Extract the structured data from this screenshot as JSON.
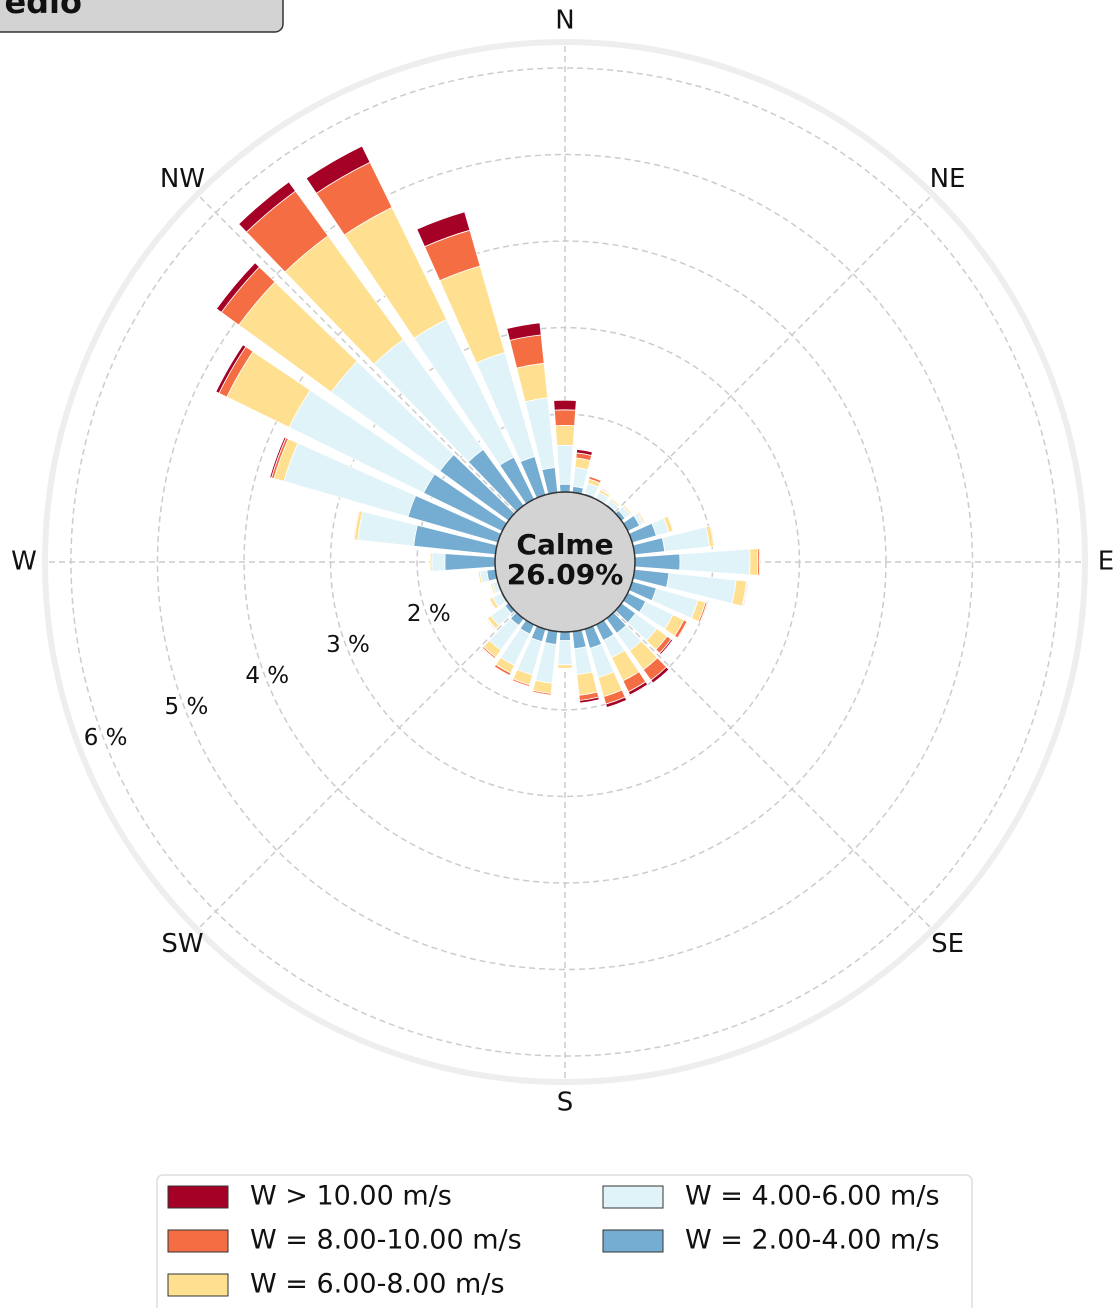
{
  "chart_data": {
    "type": "windrose",
    "title": "edio",
    "calm_label": "Calme",
    "calm": 26.09,
    "calm_value_label": "26.09%",
    "x": [
      0,
      10,
      20,
      30,
      40,
      50,
      60,
      70,
      80,
      90,
      100,
      110,
      120,
      130,
      140,
      150,
      160,
      170,
      180,
      190,
      200,
      210,
      220,
      230,
      240,
      250,
      260,
      270,
      280,
      290,
      300,
      310,
      320,
      330,
      340,
      350
    ],
    "xticks": [
      {
        "value": 0,
        "label": "N"
      },
      {
        "value": 45,
        "label": "NE"
      },
      {
        "value": 90,
        "label": "E"
      },
      {
        "value": 135,
        "label": "SE"
      },
      {
        "value": 180,
        "label": "S"
      },
      {
        "value": 225,
        "label": "SW"
      },
      {
        "value": 270,
        "label": "W"
      },
      {
        "value": 315,
        "label": "NW"
      }
    ],
    "ylim": [
      1.1,
      6.3
    ],
    "yticks": [
      {
        "value": 2,
        "label": "2 %"
      },
      {
        "value": 3,
        "label": "3 %"
      },
      {
        "value": 4,
        "label": "4 %"
      },
      {
        "value": 5,
        "label": "5 %"
      },
      {
        "value": 6,
        "label": "6 %"
      }
    ],
    "grid": true,
    "series": [
      {
        "name": "W > 10.00 m/s",
        "color": "#a50026",
        "values": [
          0.11,
          0.04,
          0.01,
          0.01,
          0,
          0,
          0,
          0,
          0,
          0.01,
          0.01,
          0.01,
          0.01,
          0.02,
          0.04,
          0.04,
          0.04,
          0.03,
          0.01,
          0.01,
          0.01,
          0.01,
          0.01,
          0.01,
          0,
          0,
          0,
          0,
          0,
          0.02,
          0.04,
          0.07,
          0.13,
          0.21,
          0.22,
          0.14
        ]
      },
      {
        "name": "W = 8.00-10.00 m/s",
        "color": "#f46d43",
        "values": [
          0.18,
          0.06,
          0.03,
          0.01,
          0.01,
          0.01,
          0.01,
          0.01,
          0.01,
          0.02,
          0.01,
          0.02,
          0.04,
          0.06,
          0.15,
          0.14,
          0.09,
          0.06,
          0.01,
          0.02,
          0.02,
          0.03,
          0.02,
          0.01,
          0.01,
          0,
          0,
          0,
          0.01,
          0.03,
          0.1,
          0.25,
          0.64,
          0.58,
          0.43,
          0.33
        ]
      },
      {
        "name": "W = 6.00-8.00 m/s",
        "color": "#fee090",
        "values": [
          0.23,
          0.11,
          0.05,
          0.03,
          0.02,
          0.02,
          0.02,
          0.05,
          0.05,
          0.09,
          0.12,
          0.09,
          0.14,
          0.15,
          0.27,
          0.3,
          0.23,
          0.24,
          0.04,
          0.12,
          0.12,
          0.1,
          0.1,
          0.05,
          0.04,
          0.02,
          0.02,
          0.02,
          0.04,
          0.12,
          0.8,
          1.32,
          1.48,
          1.44,
          1.04,
          0.4
        ]
      },
      {
        "name": "W = 4.00-6.00 m/s",
        "color": "#e0f3f8",
        "values": [
          0.45,
          0.22,
          0.12,
          0.08,
          0.06,
          0.07,
          0.05,
          0.15,
          0.52,
          0.81,
          0.78,
          0.5,
          0.35,
          0.3,
          0.25,
          0.22,
          0.35,
          0.3,
          0.28,
          0.45,
          0.4,
          0.4,
          0.35,
          0.2,
          0.1,
          0.07,
          0.08,
          0.15,
          0.65,
          1.49,
          1.73,
          1.55,
          1.57,
          1.77,
          1.25,
          0.81
        ]
      },
      {
        "name": "W = 2.00-4.00 m/s",
        "color": "#74add1",
        "values": [
          1.19,
          1.17,
          1.12,
          1.11,
          1.12,
          1.15,
          1.25,
          1.39,
          1.45,
          1.62,
          1.5,
          1.39,
          1.33,
          1.3,
          1.31,
          1.3,
          1.33,
          1.3,
          1.2,
          1.25,
          1.25,
          1.22,
          1.2,
          1.15,
          1.12,
          1.1,
          1.2,
          1.68,
          2.05,
          2.18,
          2.11,
          2.08,
          1.9,
          1.64,
          1.56,
          1.39
        ]
      }
    ]
  }
}
